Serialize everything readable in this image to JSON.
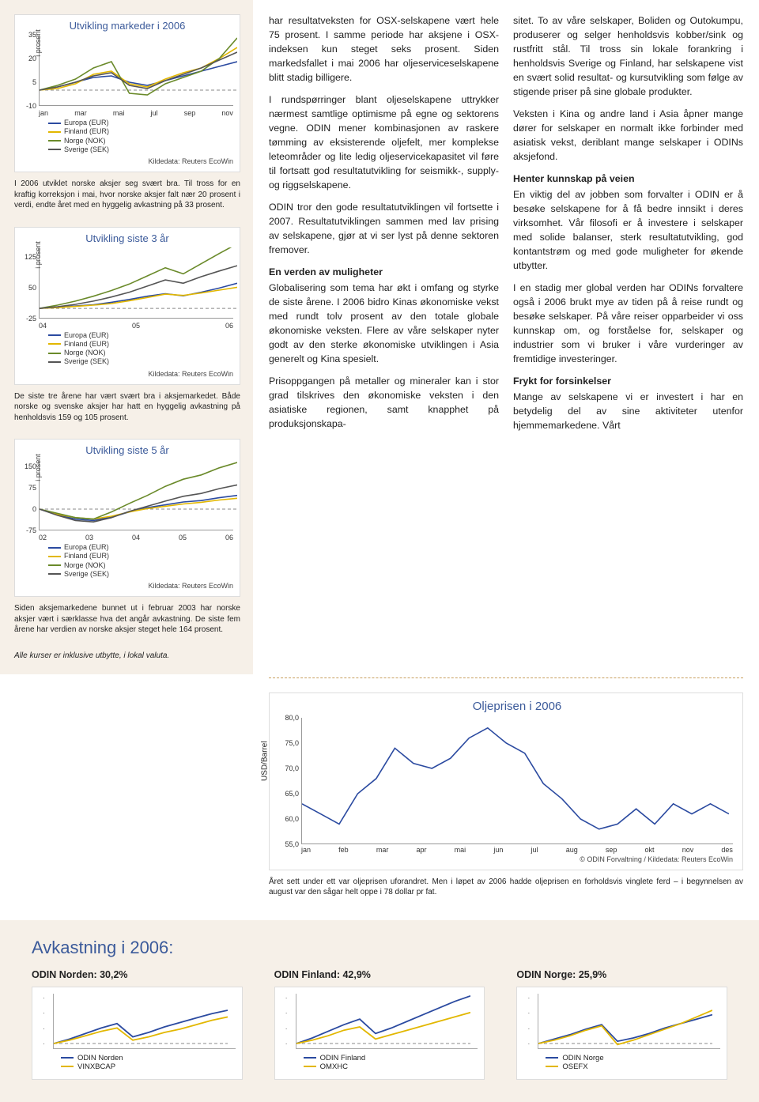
{
  "colors": {
    "europa": "#2b4aa0",
    "finland": "#e2b700",
    "norge": "#6a8a2a",
    "sverige": "#555555",
    "oil": "#2b4aa0",
    "accent": "#3b5a9a"
  },
  "side_charts": [
    {
      "title": "Utvikling markeder i 2006",
      "ylabel": "i prosent",
      "ylim": [
        -10,
        35
      ],
      "yticks": [
        -10,
        5,
        20,
        35
      ],
      "xticks": [
        "jan",
        "mar",
        "mai",
        "jul",
        "sep",
        "nov"
      ],
      "legend": [
        "Europa (EUR)",
        "Finland (EUR)",
        "Norge (NOK)",
        "Sverige (SEK)"
      ],
      "source": "Kildedata: Reuters EcoWin",
      "series": {
        "europa": [
          0,
          2,
          5,
          8,
          9,
          5,
          3,
          6,
          9,
          12,
          15,
          18
        ],
        "finland": [
          0,
          1,
          4,
          10,
          12,
          4,
          2,
          7,
          11,
          14,
          20,
          27
        ],
        "norge": [
          0,
          3,
          7,
          14,
          18,
          -2,
          -3,
          4,
          8,
          12,
          20,
          33
        ],
        "sverige": [
          0,
          2,
          5,
          9,
          11,
          3,
          1,
          6,
          10,
          14,
          19,
          24
        ]
      },
      "caption": "I 2006 utviklet norske aksjer seg svært bra. Til tross for en kraftig korreksjon i mai, hvor norske aksjer falt nær 20 prosent i verdi, endte året med en hyggelig avkastning på 33 prosent."
    },
    {
      "title": "Utvikling siste 3 år",
      "ylabel": "i prosent",
      "ylim": [
        -25,
        150
      ],
      "yticks": [
        -25,
        50,
        125
      ],
      "xticks": [
        "04",
        "05",
        "06"
      ],
      "legend": [
        "Europa (EUR)",
        "Finland (EUR)",
        "Norge (NOK)",
        "Sverige (SEK)"
      ],
      "source": "Kildedata: Reuters EcoWin",
      "series": {
        "europa": [
          0,
          3,
          6,
          9,
          15,
          22,
          30,
          36,
          31,
          40,
          50,
          62
        ],
        "finland": [
          0,
          2,
          5,
          8,
          12,
          19,
          27,
          35,
          32,
          38,
          45,
          52
        ],
        "norge": [
          0,
          8,
          18,
          30,
          44,
          60,
          80,
          100,
          85,
          110,
          135,
          159
        ],
        "sverige": [
          0,
          4,
          10,
          18,
          28,
          40,
          55,
          70,
          62,
          78,
          92,
          105
        ]
      },
      "caption": "De siste tre årene har vært svært bra i aksjemarkedet. Både norske og svenske aksjer har hatt en hyggelig avkastning på henholdsvis 159 og 105 prosent."
    },
    {
      "title": "Utvikling siste 5 år",
      "ylabel": "i prosent",
      "ylim": [
        -75,
        175
      ],
      "yticks": [
        -75,
        0,
        75,
        150
      ],
      "xticks": [
        "02",
        "03",
        "04",
        "05",
        "06"
      ],
      "legend": [
        "Europa (EUR)",
        "Finland (EUR)",
        "Norge (NOK)",
        "Sverige (SEK)"
      ],
      "source": "Kildedata: Reuters EcoWin",
      "series": {
        "europa": [
          0,
          -20,
          -35,
          -40,
          -28,
          -10,
          5,
          15,
          25,
          30,
          40,
          48
        ],
        "finland": [
          0,
          -18,
          -30,
          -35,
          -25,
          -10,
          2,
          10,
          18,
          24,
          32,
          38
        ],
        "norge": [
          0,
          -15,
          -30,
          -35,
          -10,
          20,
          48,
          80,
          105,
          120,
          145,
          164
        ],
        "sverige": [
          0,
          -22,
          -40,
          -45,
          -30,
          -8,
          10,
          28,
          45,
          55,
          72,
          85
        ]
      },
      "caption": "Siden aksjemarkedene bunnet ut i februar 2003 har norske aksjer vært i særklasse hva det angår avkastning. De siste fem årene har verdien av norske aksjer steget hele 164 prosent."
    }
  ],
  "footer_note": "Alle kurser er inklusive utbytte, i lokal valuta.",
  "col1": {
    "p1": "har resultatveksten for OSX-selskapene vært hele 75 prosent. I samme periode har aksjene i OSX-indeksen kun steget seks prosent. Siden markedsfallet i mai 2006 har oljeserviceselskapene blitt stadig billigere.",
    "p2": "I rundspørringer blant oljeselskapene uttrykker nærmest samtlige optimisme på egne og sektorens vegne. ODIN mener kombinasjonen av raskere tømming av eksisterende oljefelt, mer komplekse leteområder og lite ledig oljeservicekapasitet vil føre til fortsatt god resultatutvikling for seismikk-, supply- og riggselskapene.",
    "p3": "ODIN tror den gode resultatutviklingen vil fortsette i 2007. Resultatutviklingen sammen med lav prising av selskapene, gjør at vi ser lyst på denne sektoren fremover.",
    "h1": "En verden av muligheter",
    "p4": "Globalisering som tema har økt i omfang og styrke de siste årene. I 2006 bidro Kinas økonomiske vekst med rundt tolv prosent av den totale globale økonomiske veksten. Flere av våre selskaper nyter godt av den sterke økonomiske utviklingen i Asia generelt og Kina spesielt.",
    "p5": "Prisoppgangen på metaller og mineraler kan i stor grad tilskrives den økonomiske veksten i den asiatiske regionen, samt knapphet på produksjonskapa-"
  },
  "col2": {
    "p1": "sitet. To av våre selskaper, Boliden og Outokumpu, produserer og selger henholdsvis kobber/sink og rustfritt stål. Til tross sin lokale forankring i henholdsvis Sverige og Finland, har selskapene vist en svært solid resultat- og kursutvikling som følge av stigende priser på sine globale produkter.",
    "p2": "Veksten i Kina og andre land i Asia åpner mange dører for selskaper en normalt ikke forbinder med asiatisk vekst, deriblant mange selskaper i ODINs aksjefond.",
    "h1": "Henter kunnskap på veien",
    "p3": "En viktig del av jobben som forvalter i ODIN er å besøke selskapene for å få bedre innsikt i deres virksomhet. Vår filosofi er å investere i selskaper med solide balanser, sterk resultatutvikling, god kontantstrøm og med gode muligheter for økende utbytter.",
    "p4": "I en stadig mer global verden har ODINs forvaltere også i 2006 brukt mye av tiden på å reise rundt og besøke selskaper. På våre reiser opparbeider vi oss kunnskap om, og forståelse for, selskaper og industrier som vi bruker i våre vurderinger av fremtidige investeringer.",
    "h2": "Frykt for forsinkelser",
    "p5": "Mange av selskapene vi er investert i har en betydelig del av sine aktiviteter utenfor hjemmemarkedene. Vårt"
  },
  "oil": {
    "title": "Oljeprisen i 2006",
    "ylabel": "USD/Barrel",
    "ylim": [
      55,
      80
    ],
    "yticks": [
      55,
      60,
      65,
      70,
      75,
      80
    ],
    "xticks": [
      "jan",
      "feb",
      "mar",
      "apr",
      "mai",
      "jun",
      "jul",
      "aug",
      "sep",
      "okt",
      "nov",
      "des"
    ],
    "values": [
      63,
      61,
      59,
      65,
      68,
      74,
      71,
      70,
      72,
      76,
      78,
      75,
      73,
      67,
      64,
      60,
      58,
      59,
      62,
      59,
      63,
      61,
      63,
      61
    ],
    "source": "© ODIN Forvaltning / Kildedata: Reuters EcoWin",
    "caption": "Året sett under ett var oljeprisen uforandret. Men i løpet av 2006 hadde oljeprisen en forholdsvis vinglete ferd – i begynnelsen av august var den sågar helt oppe i 78 dollar pr fat."
  },
  "returns": {
    "heading": "Avkastning i 2006:",
    "items": [
      {
        "head": "ODIN Norden: 30,2%",
        "a": "ODIN Norden",
        "b": "VINXBCAP",
        "sa": [
          0,
          4,
          9,
          14,
          18,
          6,
          10,
          15,
          19,
          23,
          27,
          30
        ],
        "sb": [
          0,
          3,
          7,
          11,
          14,
          3,
          6,
          10,
          13,
          17,
          21,
          24
        ]
      },
      {
        "head": "ODIN Finland: 42,9%",
        "a": "ODIN Finland",
        "b": "OMXHC",
        "sa": [
          0,
          5,
          11,
          17,
          22,
          9,
          14,
          20,
          26,
          32,
          38,
          43
        ],
        "sb": [
          0,
          3,
          7,
          12,
          15,
          4,
          8,
          12,
          16,
          20,
          24,
          28
        ]
      },
      {
        "head": "ODIN Norge: 25,9%",
        "a": "ODIN Norge",
        "b": "OSEFX",
        "sa": [
          0,
          4,
          8,
          13,
          17,
          2,
          5,
          9,
          14,
          18,
          22,
          26
        ],
        "sb": [
          0,
          3,
          7,
          12,
          16,
          -1,
          3,
          8,
          13,
          18,
          24,
          30
        ]
      }
    ]
  }
}
